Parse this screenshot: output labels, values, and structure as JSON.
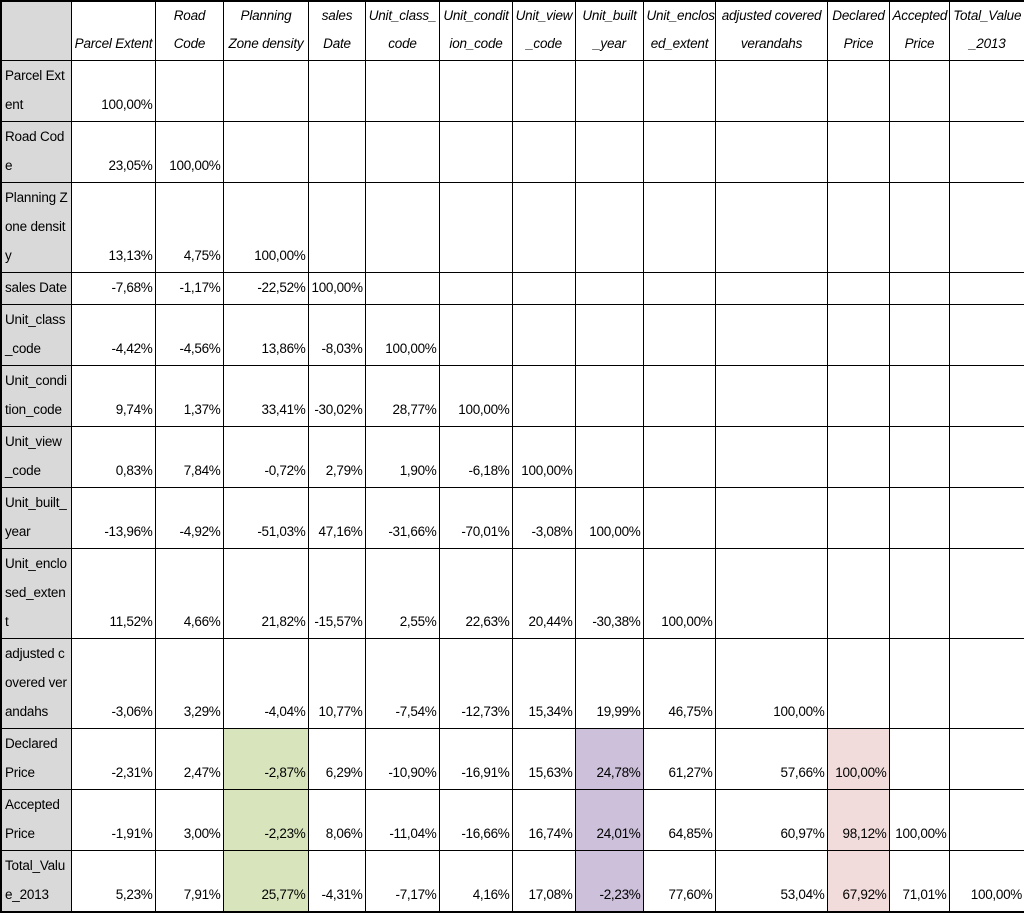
{
  "columns": [
    "Parcel Extent",
    "Road Code",
    "Planning Zone density",
    "sales Date",
    "Unit_class_ code",
    "Unit_condit ion_code",
    "Unit_view _code",
    "Unit_built _year",
    "Unit_enclos ed_extent",
    "adjusted covered verandahs",
    "Declared Price",
    "Accepted Price",
    "Total_Value _2013"
  ],
  "rows": [
    {
      "label": "Parcel Extent",
      "values": [
        "100,00%"
      ]
    },
    {
      "label": "Road Code",
      "values": [
        "23,05%",
        "100,00%"
      ]
    },
    {
      "label": "Planning Zone density",
      "values": [
        "13,13%",
        "4,75%",
        "100,00%"
      ]
    },
    {
      "label": "sales Date",
      "values": [
        "-7,68%",
        "-1,17%",
        "-22,52%",
        "100,00%"
      ]
    },
    {
      "label": "Unit_class _code",
      "values": [
        "-4,42%",
        "-4,56%",
        "13,86%",
        "-8,03%",
        "100,00%"
      ]
    },
    {
      "label": "Unit_condi tion_code",
      "values": [
        "9,74%",
        "1,37%",
        "33,41%",
        "-30,02%",
        "28,77%",
        "100,00%"
      ]
    },
    {
      "label": "Unit_view _code",
      "values": [
        "0,83%",
        "7,84%",
        "-0,72%",
        "2,79%",
        "1,90%",
        "-6,18%",
        "100,00%"
      ]
    },
    {
      "label": "Unit_built_ year",
      "values": [
        "-13,96%",
        "-4,92%",
        "-51,03%",
        "47,16%",
        "-31,66%",
        "-70,01%",
        "-3,08%",
        "100,00%"
      ]
    },
    {
      "label": "Unit_enclo sed_extent",
      "values": [
        "11,52%",
        "4,66%",
        "21,82%",
        "-15,57%",
        "2,55%",
        "22,63%",
        "20,44%",
        "-30,38%",
        "100,00%"
      ]
    },
    {
      "label": "adjusted covered verandahs",
      "values": [
        "-3,06%",
        "3,29%",
        "-4,04%",
        "10,77%",
        "-7,54%",
        "-12,73%",
        "15,34%",
        "19,99%",
        "46,75%",
        "100,00%"
      ]
    },
    {
      "label": "Declared Price",
      "values": [
        "-2,31%",
        "2,47%",
        "-2,87%",
        "6,29%",
        "-10,90%",
        "-16,91%",
        "15,63%",
        "24,78%",
        "61,27%",
        "57,66%",
        "100,00%"
      ]
    },
    {
      "label": "Accepted Price",
      "values": [
        "-1,91%",
        "3,00%",
        "-2,23%",
        "8,06%",
        "-11,04%",
        "-16,66%",
        "16,74%",
        "24,01%",
        "64,85%",
        "60,97%",
        "98,12%",
        "100,00%"
      ]
    },
    {
      "label": "Total_Valu e_2013",
      "values": [
        "5,23%",
        "7,91%",
        "25,77%",
        "-4,31%",
        "-7,17%",
        "4,16%",
        "17,08%",
        "-2,23%",
        "77,60%",
        "53,04%",
        "67,92%",
        "71,01%",
        "100,00%"
      ]
    }
  ],
  "highlights": [
    {
      "row": 10,
      "col": 2,
      "color": "#d8e4bc"
    },
    {
      "row": 11,
      "col": 2,
      "color": "#d8e4bc"
    },
    {
      "row": 12,
      "col": 2,
      "color": "#d8e4bc"
    },
    {
      "row": 10,
      "col": 7,
      "color": "#ccc0da"
    },
    {
      "row": 11,
      "col": 7,
      "color": "#ccc0da"
    },
    {
      "row": 12,
      "col": 7,
      "color": "#ccc0da"
    },
    {
      "row": 10,
      "col": 10,
      "color": "#f2dcdb"
    },
    {
      "row": 11,
      "col": 10,
      "color": "#f2dcdb"
    },
    {
      "row": 12,
      "col": 10,
      "color": "#f2dcdb"
    }
  ],
  "colors": {
    "row_header_bg": "#d9d9d9",
    "green": "#d8e4bc",
    "purple": "#ccc0da",
    "pink": "#f2dcdb"
  }
}
